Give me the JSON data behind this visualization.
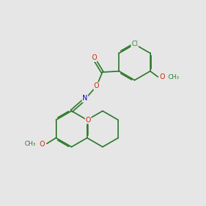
{
  "background_color": "#e6e6e6",
  "bond_color": "#2d7a2d",
  "atom_colors": {
    "O": "#cc2200",
    "N": "#0000cc",
    "Cl": "#3a8a3a"
  },
  "font_size": 7.0,
  "bond_width": 1.3,
  "dbo": 0.055
}
